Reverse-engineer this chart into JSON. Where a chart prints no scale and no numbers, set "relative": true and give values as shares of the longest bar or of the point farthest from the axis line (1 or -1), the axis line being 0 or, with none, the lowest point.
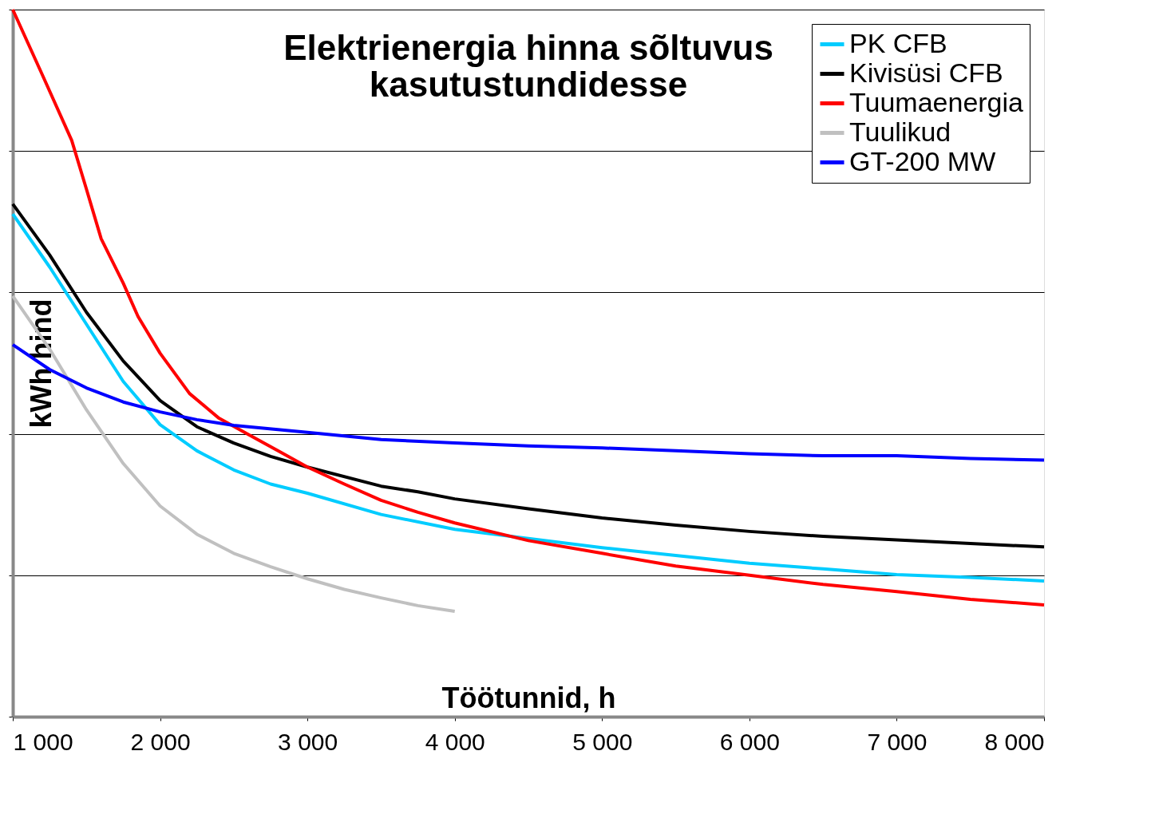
{
  "chart_data": {
    "type": "line",
    "title": [
      "Elektrienergia hinna sõltuvus",
      "kasutustundidesse"
    ],
    "xlabel": "Töötunnid, h",
    "ylabel": "kWh hind",
    "relative": true,
    "grid": "y",
    "legend": "top right",
    "marker": "none",
    "line_style": "solid",
    "xlim": [
      1000,
      8000
    ],
    "xticks": [
      {
        "value": 1000,
        "label": "1 000"
      },
      {
        "value": 2000,
        "label": "2 000"
      },
      {
        "value": 3000,
        "label": "3 000"
      },
      {
        "value": 4000,
        "label": "4 000"
      },
      {
        "value": 5000,
        "label": "5 000"
      },
      {
        "value": 6000,
        "label": "6 000"
      },
      {
        "value": 7000,
        "label": "7 000"
      },
      {
        "value": 8000,
        "label": "8 000"
      }
    ],
    "series": [
      {
        "name": "PK CFB",
        "color": "#00ccff",
        "x": [
          1000,
          1250,
          1500,
          1750,
          2000,
          2250,
          2500,
          2750,
          3000,
          3500,
          4000,
          4500,
          5000,
          5500,
          6000,
          6500,
          7000,
          7500,
          8000
        ],
        "values": [
          0.711,
          0.636,
          0.555,
          0.474,
          0.413,
          0.376,
          0.349,
          0.329,
          0.316,
          0.286,
          0.265,
          0.252,
          0.239,
          0.228,
          0.217,
          0.209,
          0.201,
          0.197,
          0.192
        ]
      },
      {
        "name": "Kivisüsi CFB",
        "color": "#000000",
        "x": [
          1000,
          1250,
          1500,
          1750,
          2000,
          2250,
          2500,
          2750,
          3000,
          3500,
          3750,
          4000,
          4500,
          5000,
          5500,
          6000,
          6500,
          7000,
          7500,
          8000
        ],
        "values": [
          0.725,
          0.653,
          0.572,
          0.503,
          0.447,
          0.41,
          0.387,
          0.368,
          0.353,
          0.326,
          0.318,
          0.308,
          0.294,
          0.281,
          0.271,
          0.262,
          0.255,
          0.25,
          0.245,
          0.24
        ]
      },
      {
        "name": "Tuumaenergia",
        "color": "#ff0000",
        "x": [
          1000,
          1200,
          1400,
          1500,
          1600,
          1750,
          1850,
          2000,
          2200,
          2400,
          2600,
          2800,
          3000,
          3250,
          3500,
          3750,
          4000,
          4500,
          5000,
          5500,
          6000,
          6500,
          7000,
          7500,
          8000
        ],
        "values": [
          1.0,
          0.908,
          0.815,
          0.746,
          0.676,
          0.613,
          0.566,
          0.514,
          0.457,
          0.422,
          0.399,
          0.376,
          0.353,
          0.329,
          0.306,
          0.289,
          0.274,
          0.249,
          0.231,
          0.213,
          0.2,
          0.187,
          0.177,
          0.166,
          0.158
        ]
      },
      {
        "name": "Tuulikud",
        "color": "#c0c0c0",
        "x": [
          1000,
          1250,
          1500,
          1750,
          2000,
          2250,
          2500,
          2750,
          3000,
          3250,
          3500,
          3750,
          4000
        ],
        "values": [
          0.595,
          0.52,
          0.434,
          0.358,
          0.298,
          0.258,
          0.231,
          0.212,
          0.195,
          0.18,
          0.168,
          0.157,
          0.149
        ]
      },
      {
        "name": "GT-200 MW",
        "color": "#0000ff",
        "x": [
          1000,
          1250,
          1500,
          1750,
          2000,
          2250,
          2500,
          3000,
          3500,
          4000,
          4500,
          5000,
          5500,
          6000,
          6500,
          7000,
          7500,
          8000
        ],
        "values": [
          0.526,
          0.491,
          0.465,
          0.445,
          0.431,
          0.42,
          0.412,
          0.402,
          0.392,
          0.387,
          0.383,
          0.38,
          0.376,
          0.372,
          0.369,
          0.369,
          0.365,
          0.363
        ]
      }
    ]
  }
}
